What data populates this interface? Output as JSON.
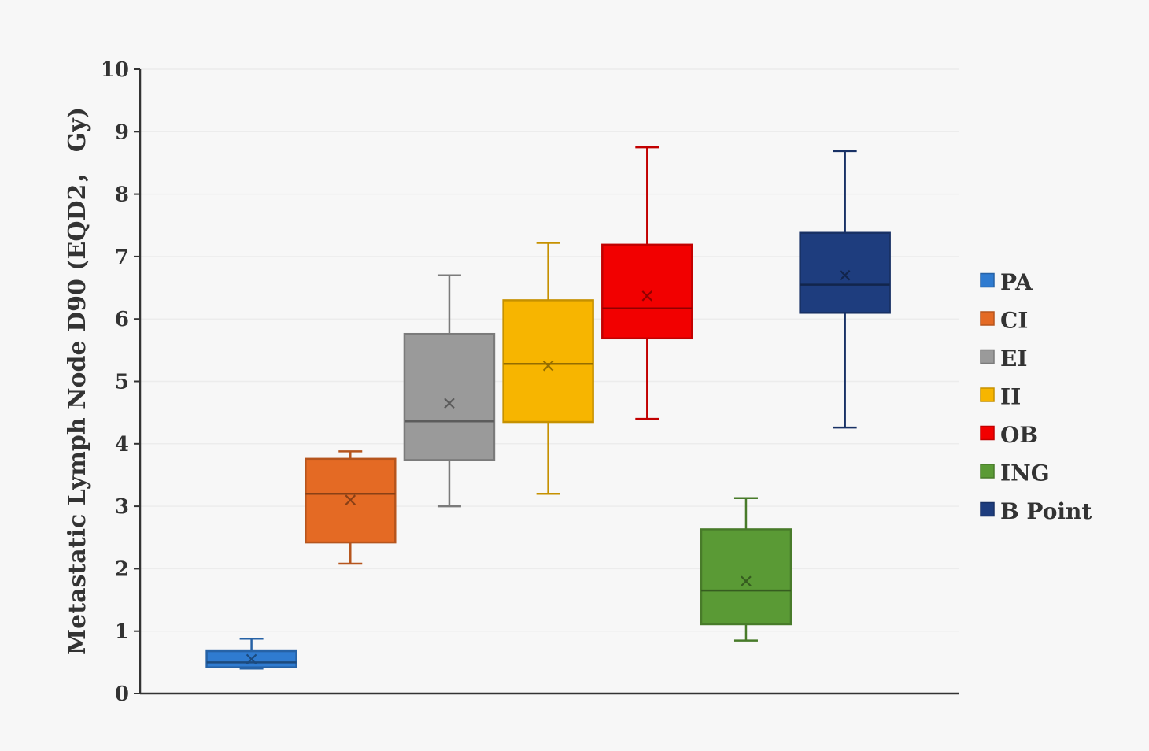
{
  "chart_data": {
    "type": "box",
    "title": "",
    "xlabel": "",
    "ylabel": "Metastatic Lymph Node D90 (EQD2， Gy)",
    "ylim": [
      0,
      10
    ],
    "yticks": [
      "0",
      "1",
      "2",
      "3",
      "4",
      "5",
      "6",
      "7",
      "8",
      "9",
      "10"
    ],
    "grid": true,
    "legend_position": "right",
    "series": [
      {
        "name": "PA",
        "color": "#2f7bd0",
        "min": 0.4,
        "q1": 0.42,
        "median": 0.5,
        "q3": 0.68,
        "max": 0.88,
        "mean": 0.55
      },
      {
        "name": "CI",
        "color": "#e46a24",
        "min": 2.08,
        "q1": 2.42,
        "median": 3.2,
        "q3": 3.76,
        "max": 3.88,
        "mean": 3.1
      },
      {
        "name": "EI",
        "color": "#9a9a9a",
        "min": 3.0,
        "q1": 3.74,
        "median": 4.36,
        "q3": 5.76,
        "max": 6.7,
        "mean": 4.65
      },
      {
        "name": "II",
        "color": "#f7b500",
        "min": 3.2,
        "q1": 4.35,
        "median": 5.28,
        "q3": 6.3,
        "max": 7.22,
        "mean": 5.25
      },
      {
        "name": "OB",
        "color": "#f20000",
        "min": 4.4,
        "q1": 5.69,
        "median": 6.17,
        "q3": 7.19,
        "max": 8.75,
        "mean": 6.37
      },
      {
        "name": "ING",
        "color": "#5a9a35",
        "min": 0.85,
        "q1": 1.11,
        "median": 1.65,
        "q3": 2.63,
        "max": 3.13,
        "mean": 1.8
      },
      {
        "name": "B Point",
        "color": "#1e3d7e",
        "min": 4.26,
        "q1": 6.1,
        "median": 6.55,
        "q3": 7.38,
        "max": 8.69,
        "mean": 6.7
      }
    ]
  }
}
